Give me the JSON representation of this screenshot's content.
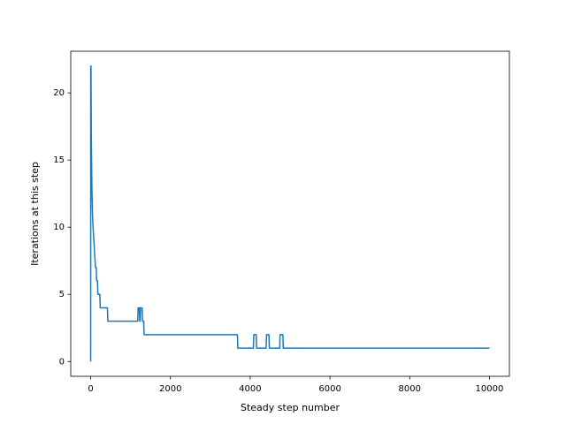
{
  "chart_data": {
    "type": "line",
    "xlabel": "Steady step number",
    "ylabel": "Iterations at this step",
    "x": [
      0,
      1,
      8,
      15,
      30,
      45,
      60,
      80,
      100,
      120,
      140,
      150,
      170,
      180,
      230,
      240,
      420,
      430,
      1180,
      1190,
      1220,
      1230,
      1240,
      1250,
      1290,
      1300,
      1330,
      1340,
      3680,
      3690,
      4080,
      4090,
      4150,
      4160,
      4400,
      4410,
      4470,
      4480,
      4740,
      4750,
      4820,
      4830,
      10000
    ],
    "series": [
      {
        "color": "#1f77b4",
        "values": [
          0,
          22,
          22,
          17,
          13,
          11,
          10,
          9,
          8,
          7,
          7,
          6,
          6,
          5,
          5,
          4,
          4,
          3,
          3,
          4,
          4,
          3,
          3,
          4,
          4,
          3,
          3,
          2,
          2,
          1,
          1,
          2,
          2,
          1,
          1,
          2,
          2,
          1,
          1,
          2,
          2,
          1,
          1
        ]
      }
    ],
    "xlim": [
      -500,
      10500
    ],
    "ylim": [
      -1.1,
      23.1
    ],
    "xticks": [
      0,
      2000,
      4000,
      6000,
      8000,
      10000
    ],
    "yticks": [
      0,
      5,
      10,
      15,
      20
    ]
  }
}
